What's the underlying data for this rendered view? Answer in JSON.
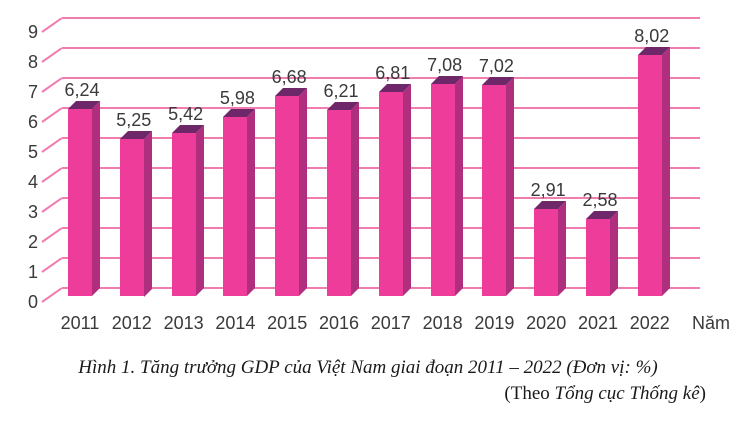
{
  "chart_data": {
    "type": "bar",
    "style": "3d-bar",
    "title": "",
    "categories": [
      "2011",
      "2012",
      "2013",
      "2014",
      "2015",
      "2016",
      "2017",
      "2018",
      "2019",
      "2020",
      "2021",
      "2022"
    ],
    "values": [
      6.24,
      5.25,
      5.42,
      5.98,
      6.68,
      6.21,
      6.81,
      7.08,
      7.02,
      2.91,
      2.58,
      8.02
    ],
    "value_labels": [
      "6,24",
      "5,25",
      "5,42",
      "5,98",
      "6,68",
      "6,21",
      "6,81",
      "7,08",
      "7,02",
      "2,91",
      "2,58",
      "8,02"
    ],
    "xlabel": "Năm",
    "ylabel": "",
    "ylim": [
      0,
      9
    ],
    "yticks": [
      0,
      1,
      2,
      3,
      4,
      5,
      6,
      7,
      8,
      9
    ],
    "grid": true,
    "legend": "none",
    "unit": "%",
    "colors": {
      "bar_front": "#EE3C9B",
      "bar_side": "#B02E7E",
      "bar_top": "#6E2869",
      "gridline": "#F17CB0",
      "label_text": "#3A3A3A"
    }
  },
  "caption": {
    "line1": "Hình 1. Tăng trưởng GDP của Việt Nam giai đoạn 2011 – 2022 (Đơn vị: %)",
    "line2_prefix": "(Theo ",
    "line2_source": "Tổng cục Thống kê",
    "line2_suffix": ")"
  }
}
